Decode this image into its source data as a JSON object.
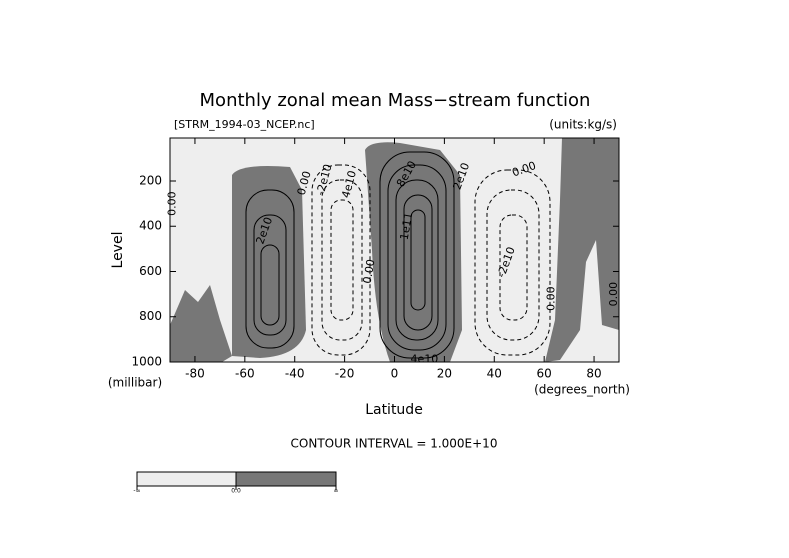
{
  "chart_data": {
    "type": "contour",
    "title": "Monthly zonal mean Mass−stream function",
    "subtitle_left": "[STRM_1994-03_NCEP.nc]",
    "subtitle_right": "(units:kg/s)",
    "xlabel": "Latitude",
    "xunit": "(degrees_north)",
    "ylabel": "Level",
    "yunit": "(millibar)",
    "xlim": [
      -90,
      90
    ],
    "xticks": [
      -80,
      -60,
      -40,
      -20,
      0,
      20,
      40,
      60,
      80
    ],
    "ylim": [
      1000,
      10
    ],
    "yticks": [
      200,
      400,
      600,
      800,
      1000
    ],
    "contour_labels": [
      "0.00",
      "2e10",
      "0.00",
      "-2e10",
      "4e10",
      "0.00",
      "1e11",
      "8e10",
      "2e10",
      "0.00",
      "-2e10",
      "0.00",
      "0.00",
      "4e10"
    ],
    "contour_interval": "CONTOUR INTERVAL = 1.000E+10",
    "colorbar_labels": [
      "-∞",
      "0.0",
      "∞"
    ],
    "colors": {
      "negative": "#eeeeee",
      "positive": "#777777"
    }
  }
}
